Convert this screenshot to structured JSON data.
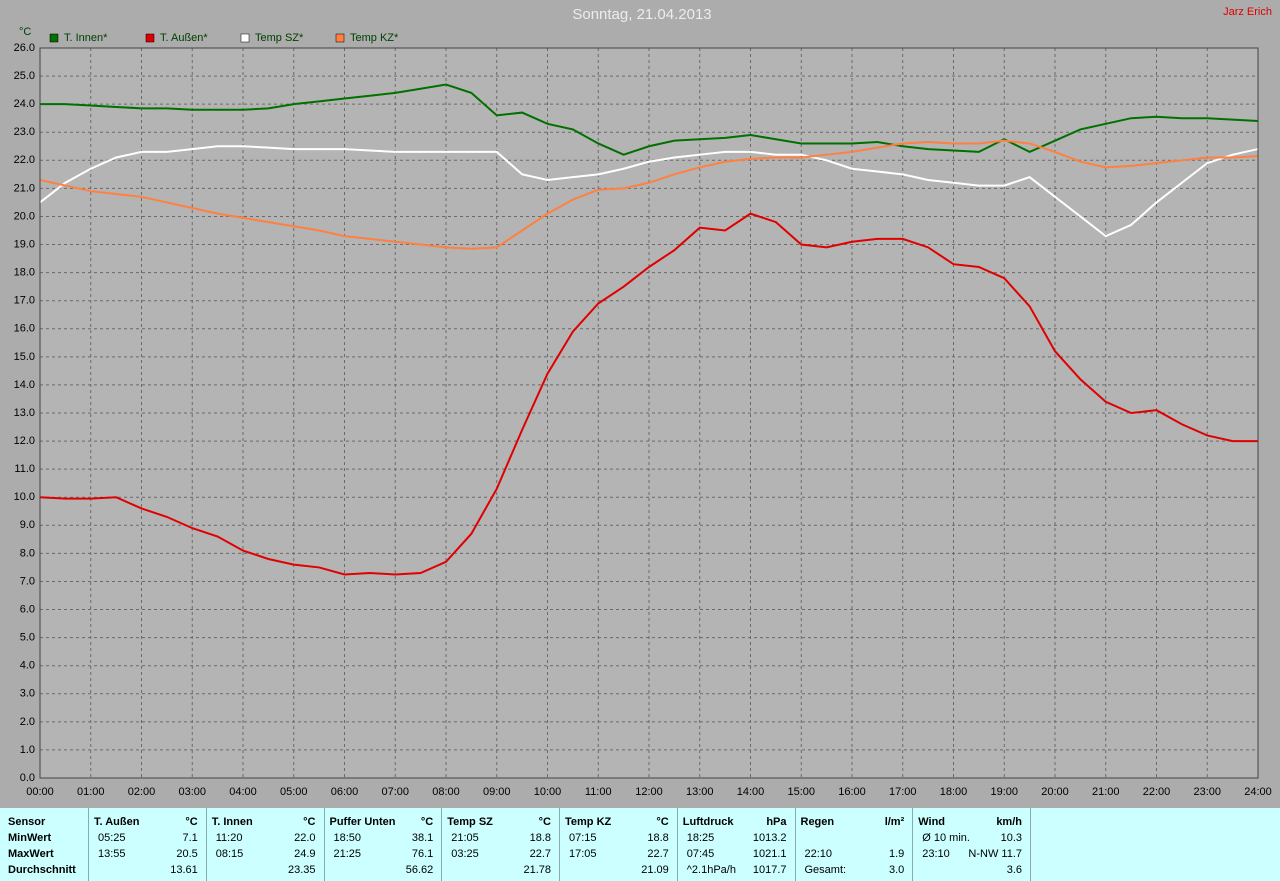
{
  "chart_data": {
    "type": "line",
    "title": "Sonntag, 21.04.2013",
    "author": "Jarz Erich",
    "ylabel": "°C",
    "x": [
      0,
      0.5,
      1,
      1.5,
      2,
      2.5,
      3,
      3.5,
      4,
      4.5,
      5,
      5.5,
      6,
      6.5,
      7,
      7.5,
      8,
      8.5,
      9,
      9.5,
      10,
      10.5,
      11,
      11.5,
      12,
      12.5,
      13,
      13.5,
      14,
      14.5,
      15,
      15.5,
      16,
      16.5,
      17,
      17.5,
      18,
      18.5,
      19,
      19.5,
      20,
      20.5,
      21,
      21.5,
      22,
      22.5,
      23,
      23.5,
      24
    ],
    "series": [
      {
        "name": "T. Innen*",
        "color": "#007000",
        "values": [
          24.0,
          24.0,
          23.95,
          23.9,
          23.85,
          23.85,
          23.8,
          23.8,
          23.8,
          23.85,
          24.0,
          24.1,
          24.2,
          24.3,
          24.4,
          24.55,
          24.7,
          24.4,
          23.6,
          23.7,
          23.3,
          23.1,
          22.6,
          22.2,
          22.5,
          22.7,
          22.75,
          22.8,
          22.9,
          22.75,
          22.6,
          22.6,
          22.6,
          22.65,
          22.5,
          22.4,
          22.35,
          22.3,
          22.75,
          22.3,
          22.7,
          23.1,
          23.3,
          23.5,
          23.55,
          23.5,
          23.5,
          23.45,
          23.4
        ]
      },
      {
        "name": "T. Außen*",
        "color": "#e00000",
        "values": [
          10.0,
          9.95,
          9.95,
          10.0,
          9.6,
          9.3,
          8.9,
          8.6,
          8.1,
          7.8,
          7.6,
          7.5,
          7.25,
          7.3,
          7.25,
          7.3,
          7.7,
          8.7,
          10.3,
          12.4,
          14.4,
          15.9,
          16.9,
          17.5,
          18.2,
          18.8,
          19.6,
          19.5,
          20.1,
          19.8,
          19.0,
          18.9,
          19.1,
          19.2,
          19.2,
          18.9,
          18.3,
          18.2,
          17.8,
          16.8,
          15.2,
          14.2,
          13.4,
          13.0,
          13.1,
          12.6,
          12.2,
          12.0,
          12.0
        ]
      },
      {
        "name": "Temp SZ*",
        "color": "#ffffff",
        "values": [
          20.5,
          21.2,
          21.7,
          22.1,
          22.3,
          22.3,
          22.4,
          22.5,
          22.5,
          22.45,
          22.4,
          22.4,
          22.4,
          22.35,
          22.3,
          22.3,
          22.3,
          22.3,
          22.3,
          21.5,
          21.3,
          21.4,
          21.5,
          21.7,
          21.95,
          22.1,
          22.2,
          22.3,
          22.3,
          22.2,
          22.2,
          22.0,
          21.7,
          21.6,
          21.5,
          21.3,
          21.2,
          21.1,
          21.1,
          21.4,
          20.7,
          20.0,
          19.3,
          19.7,
          20.5,
          21.2,
          21.9,
          22.2,
          22.4
        ]
      },
      {
        "name": "Temp KZ*",
        "color": "#ff8040",
        "values": [
          21.3,
          21.1,
          20.9,
          20.8,
          20.7,
          20.5,
          20.3,
          20.1,
          19.95,
          19.8,
          19.65,
          19.5,
          19.3,
          19.2,
          19.1,
          19.0,
          18.9,
          18.85,
          18.9,
          19.5,
          20.1,
          20.6,
          20.95,
          21.0,
          21.2,
          21.5,
          21.75,
          21.95,
          22.05,
          22.1,
          22.1,
          22.2,
          22.3,
          22.45,
          22.6,
          22.65,
          22.6,
          22.6,
          22.7,
          22.6,
          22.3,
          21.95,
          21.75,
          21.8,
          21.9,
          22.0,
          22.1,
          22.1,
          22.15
        ]
      }
    ],
    "xlim": [
      0,
      24
    ],
    "xticks": [
      {
        "value": 0,
        "label": "00:00"
      },
      {
        "value": 1,
        "label": "01:00"
      },
      {
        "value": 2,
        "label": "02:00"
      },
      {
        "value": 3,
        "label": "03:00"
      },
      {
        "value": 4,
        "label": "04:00"
      },
      {
        "value": 5,
        "label": "05:00"
      },
      {
        "value": 6,
        "label": "06:00"
      },
      {
        "value": 7,
        "label": "07:00"
      },
      {
        "value": 8,
        "label": "08:00"
      },
      {
        "value": 9,
        "label": "09:00"
      },
      {
        "value": 10,
        "label": "10:00"
      },
      {
        "value": 11,
        "label": "11:00"
      },
      {
        "value": 12,
        "label": "12:00"
      },
      {
        "value": 13,
        "label": "13:00"
      },
      {
        "value": 14,
        "label": "14:00"
      },
      {
        "value": 15,
        "label": "15:00"
      },
      {
        "value": 16,
        "label": "16:00"
      },
      {
        "value": 17,
        "label": "17:00"
      },
      {
        "value": 18,
        "label": "18:00"
      },
      {
        "value": 19,
        "label": "19:00"
      },
      {
        "value": 20,
        "label": "20:00"
      },
      {
        "value": 21,
        "label": "21:00"
      },
      {
        "value": 22,
        "label": "22:00"
      },
      {
        "value": 23,
        "label": "23:00"
      },
      {
        "value": 24,
        "label": "24:00"
      }
    ],
    "ylim": [
      0,
      26
    ],
    "yticks": [
      {
        "value": 0,
        "label": "0.0"
      },
      {
        "value": 1,
        "label": "1.0"
      },
      {
        "value": 2,
        "label": "2.0"
      },
      {
        "value": 3,
        "label": "3.0"
      },
      {
        "value": 4,
        "label": "4.0"
      },
      {
        "value": 5,
        "label": "5.0"
      },
      {
        "value": 6,
        "label": "6.0"
      },
      {
        "value": 7,
        "label": "7.0"
      },
      {
        "value": 8,
        "label": "8.0"
      },
      {
        "value": 9,
        "label": "9.0"
      },
      {
        "value": 10,
        "label": "10.0"
      },
      {
        "value": 11,
        "label": "11.0"
      },
      {
        "value": 12,
        "label": "12.0"
      },
      {
        "value": 13,
        "label": "13.0"
      },
      {
        "value": 14,
        "label": "14.0"
      },
      {
        "value": 15,
        "label": "15.0"
      },
      {
        "value": 16,
        "label": "16.0"
      },
      {
        "value": 17,
        "label": "17.0"
      },
      {
        "value": 18,
        "label": "18.0"
      },
      {
        "value": 19,
        "label": "19.0"
      },
      {
        "value": 20,
        "label": "20.0"
      },
      {
        "value": 21,
        "label": "21.0"
      },
      {
        "value": 22,
        "label": "22.0"
      },
      {
        "value": 23,
        "label": "23.0"
      },
      {
        "value": 24,
        "label": "24.0"
      },
      {
        "value": 25,
        "label": "25.0"
      },
      {
        "value": 26,
        "label": "26.0"
      }
    ],
    "grid": true,
    "legend": "top-left"
  },
  "stats_table": {
    "row_labels": [
      "Sensor",
      "MinWert",
      "MaxWert",
      "Durchschnitt"
    ],
    "groups": [
      {
        "header": [
          "T. Außen",
          "°C"
        ],
        "min": [
          "05:25",
          "7.1"
        ],
        "max": [
          "13:55",
          "20.5"
        ],
        "avg": [
          "13.61"
        ]
      },
      {
        "header": [
          "T. Innen",
          "°C"
        ],
        "min": [
          "11:20",
          "22.0"
        ],
        "max": [
          "08:15",
          "24.9"
        ],
        "avg": [
          "23.35"
        ]
      },
      {
        "header": [
          "Puffer Unten",
          "°C"
        ],
        "min": [
          "18:50",
          "38.1"
        ],
        "max": [
          "21:25",
          "76.1"
        ],
        "avg": [
          "56.62"
        ]
      },
      {
        "header": [
          "Temp SZ",
          "°C"
        ],
        "min": [
          "21:05",
          "18.8"
        ],
        "max": [
          "03:25",
          "22.7"
        ],
        "avg": [
          "21.78"
        ]
      },
      {
        "header": [
          "Temp KZ",
          "°C"
        ],
        "min": [
          "07:15",
          "18.8"
        ],
        "max": [
          "17:05",
          "22.7"
        ],
        "avg": [
          "21.09"
        ]
      },
      {
        "header": [
          "Luftdruck",
          "hPa"
        ],
        "min": [
          "18:25",
          "1013.2"
        ],
        "max": [
          "07:45",
          "1021.1"
        ],
        "avg": [
          "^2.1hPa/h",
          "1017.7"
        ]
      },
      {
        "header": [
          "Regen",
          "l/m²"
        ],
        "max": [
          "22:10",
          "1.9"
        ],
        "avg": [
          "Gesamt:",
          "3.0"
        ]
      },
      {
        "header": [
          "Wind",
          "km/h"
        ],
        "min": [
          "Ø 10 min.",
          "10.3"
        ],
        "max": [
          "23:10",
          "N-NW 11.7"
        ],
        "avg": [
          "3.6"
        ]
      }
    ]
  }
}
